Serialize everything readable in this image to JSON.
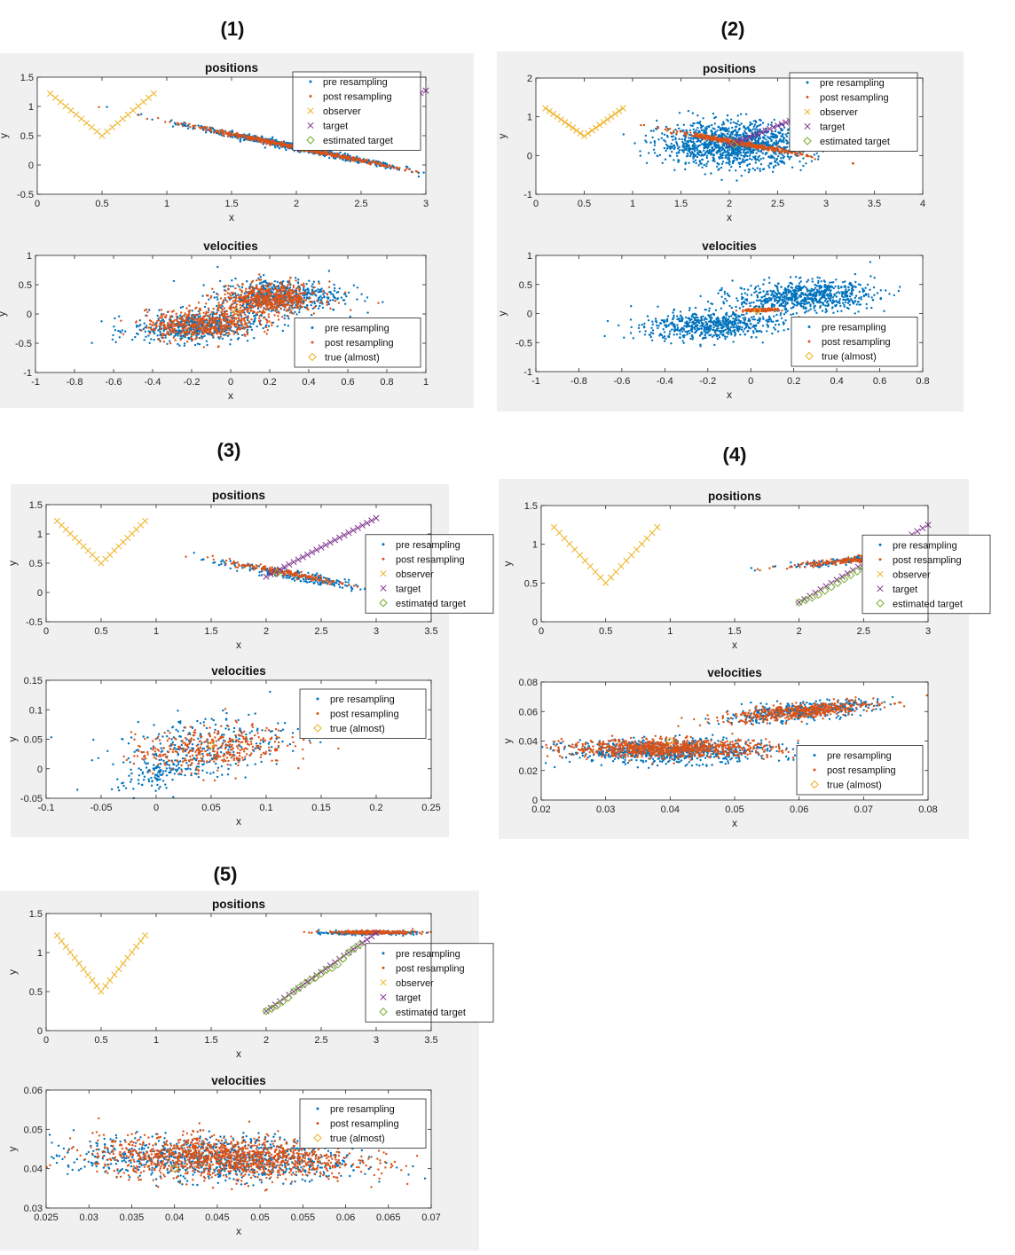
{
  "colors": {
    "pre": "#0072BD",
    "post": "#D95319",
    "observer": "#EDB120",
    "target": "#7E2F8E",
    "estimated": "#77AC30",
    "true_marker": "#EDB120",
    "panel_bg": "#F0F0F0"
  },
  "legend_labels": {
    "pre": "pre resampling",
    "post": "post resampling",
    "observer": "observer",
    "target": "target",
    "estimated": "estimated target",
    "true_almost": "true (almost)"
  },
  "axis_labels": {
    "x": "x",
    "y": "y"
  },
  "figures": [
    {
      "id": "1",
      "label": "(1)",
      "positions": {
        "title": "positions",
        "xlim": [
          0,
          3
        ],
        "ylim": [
          -0.5,
          1.5
        ],
        "xticks": [
          0,
          0.5,
          1,
          1.5,
          2,
          2.5,
          3
        ],
        "xtick_labels": [
          "0",
          "0.5",
          "1",
          "1.5",
          "2",
          "2.5",
          "3"
        ],
        "yticks": [
          -0.5,
          0,
          0.5,
          1,
          1.5
        ],
        "ytick_labels": [
          "-0.5",
          "0",
          "0.5",
          "1",
          "1.5"
        ],
        "legend": "top-right",
        "observer": {
          "xmin": 0.1,
          "xmax": 0.9,
          "n": 21,
          "ymin": 0.5,
          "yend": 1.22
        },
        "target": {
          "x0": 2.0,
          "y0": 0.27,
          "x1": 3.0,
          "y1": 1.27,
          "n": 25
        },
        "estimated": [
          [
            2.05,
            0.29
          ]
        ],
        "clouds": [
          {
            "set": "pre",
            "n": 700,
            "cx": 2.0,
            "cy": 0.3,
            "sx": 0.42,
            "sy": 0.028,
            "slope": -0.45
          },
          {
            "set": "post",
            "n": 520,
            "cx": 1.98,
            "cy": 0.31,
            "sx": 0.4,
            "sy": 0.018,
            "slope": -0.45
          }
        ]
      },
      "velocities": {
        "title": "velocities",
        "xlim": [
          -1,
          1
        ],
        "ylim": [
          -1,
          1
        ],
        "xticks": [
          -1,
          -0.8,
          -0.6,
          -0.4,
          -0.2,
          0,
          0.2,
          0.4,
          0.6,
          0.8,
          1
        ],
        "xtick_labels": [
          "-1",
          "-0.8",
          "-0.6",
          "-0.4",
          "-0.2",
          "0",
          "0.2",
          "0.4",
          "0.6",
          "0.8",
          "1"
        ],
        "yticks": [
          -1,
          -0.5,
          0,
          0.5,
          1
        ],
        "ytick_labels": [
          "-1",
          "-0.5",
          "0",
          "0.5",
          "1"
        ],
        "legend": "bottom-right",
        "true_point": [
          0.03,
          0.05
        ],
        "clouds": [
          {
            "set": "pre",
            "n": 520,
            "cx": -0.18,
            "cy": -0.22,
            "sx": 0.16,
            "sy": 0.13,
            "slope": 0.15
          },
          {
            "set": "pre",
            "n": 520,
            "cx": 0.25,
            "cy": 0.3,
            "sx": 0.16,
            "sy": 0.15,
            "slope": 0.1
          },
          {
            "set": "post",
            "n": 500,
            "cx": -0.15,
            "cy": -0.17,
            "sx": 0.14,
            "sy": 0.13,
            "slope": 0.15
          },
          {
            "set": "post",
            "n": 620,
            "cx": 0.2,
            "cy": 0.25,
            "sx": 0.13,
            "sy": 0.13,
            "slope": 0.1
          }
        ]
      }
    },
    {
      "id": "2",
      "label": "(2)",
      "positions": {
        "title": "positions",
        "xlim": [
          0,
          4
        ],
        "ylim": [
          -1,
          2
        ],
        "xticks": [
          0,
          0.5,
          1,
          1.5,
          2,
          2.5,
          3,
          3.5,
          4
        ],
        "xtick_labels": [
          "0",
          "0.5",
          "1",
          "1.5",
          "2",
          "2.5",
          "3",
          "3.5",
          "4"
        ],
        "yticks": [
          -1,
          0,
          1,
          2
        ],
        "ytick_labels": [
          "-1",
          "0",
          "1",
          "2"
        ],
        "legend": "top-right",
        "observer": {
          "xmin": 0.1,
          "xmax": 0.9,
          "n": 21,
          "ymin": 0.5,
          "yend": 1.22
        },
        "target": {
          "x0": 2.0,
          "y0": 0.27,
          "x1": 3.0,
          "y1": 1.27,
          "n": 25
        },
        "estimated": [
          [
            2.05,
            0.28
          ]
        ],
        "clouds": [
          {
            "set": "pre",
            "n": 1300,
            "cx": 2.05,
            "cy": 0.3,
            "sx": 0.38,
            "sy": 0.28,
            "slope": 0.0
          },
          {
            "set": "post",
            "n": 420,
            "cx": 2.1,
            "cy": 0.32,
            "sx": 0.33,
            "sy": 0.03,
            "slope": -0.45
          }
        ]
      },
      "velocities": {
        "title": "velocities",
        "xlim": [
          -1,
          0.8
        ],
        "ylim": [
          -1,
          1
        ],
        "xticks": [
          -1,
          -0.8,
          -0.6,
          -0.4,
          -0.2,
          0,
          0.2,
          0.4,
          0.6,
          0.8
        ],
        "xtick_labels": [
          "-1",
          "-0.8",
          "-0.6",
          "-0.4",
          "-0.2",
          "0",
          "0.2",
          "0.4",
          "0.6",
          "0.8"
        ],
        "yticks": [
          -1,
          -0.5,
          0,
          0.5,
          1
        ],
        "ytick_labels": [
          "-1",
          "-0.5",
          "0",
          "0.5",
          "1"
        ],
        "legend": "bottom-right",
        "true_point": [
          0.03,
          0.05
        ],
        "clouds": [
          {
            "set": "pre",
            "n": 620,
            "cx": -0.18,
            "cy": -0.2,
            "sx": 0.16,
            "sy": 0.12,
            "slope": 0.15
          },
          {
            "set": "pre",
            "n": 700,
            "cx": 0.25,
            "cy": 0.3,
            "sx": 0.16,
            "sy": 0.13,
            "slope": 0.1
          },
          {
            "set": "post",
            "n": 200,
            "cx": 0.05,
            "cy": 0.06,
            "sx": 0.04,
            "sy": 0.012,
            "slope": 0.1
          }
        ]
      }
    },
    {
      "id": "3",
      "label": "(3)",
      "positions": {
        "title": "positions",
        "xlim": [
          0,
          3.5
        ],
        "ylim": [
          -0.5,
          1.5
        ],
        "xticks": [
          0,
          0.5,
          1,
          1.5,
          2,
          2.5,
          3,
          3.5
        ],
        "xtick_labels": [
          "0",
          "0.5",
          "1",
          "1.5",
          "2",
          "2.5",
          "3",
          "3.5"
        ],
        "yticks": [
          -0.5,
          0,
          0.5,
          1,
          1.5
        ],
        "ytick_labels": [
          "-0.5",
          "0",
          "0.5",
          "1",
          "1.5"
        ],
        "legend": "right",
        "observer": {
          "xmin": 0.1,
          "xmax": 0.9,
          "n": 21,
          "ymin": 0.5,
          "yend": 1.22
        },
        "target": {
          "x0": 2.0,
          "y0": 0.27,
          "x1": 3.0,
          "y1": 1.27,
          "n": 25
        },
        "estimated": [
          [
            2.1,
            0.33
          ]
        ],
        "clouds": [
          {
            "set": "pre",
            "n": 220,
            "cx": 2.25,
            "cy": 0.28,
            "sx": 0.35,
            "sy": 0.05,
            "slope": -0.35
          },
          {
            "set": "post",
            "n": 180,
            "cx": 2.2,
            "cy": 0.33,
            "sx": 0.28,
            "sy": 0.03,
            "slope": -0.35
          }
        ]
      },
      "velocities": {
        "title": "velocities",
        "xlim": [
          -0.1,
          0.25
        ],
        "ylim": [
          -0.05,
          0.15
        ],
        "xticks": [
          -0.1,
          -0.05,
          0,
          0.05,
          0.1,
          0.15,
          0.2,
          0.25
        ],
        "xtick_labels": [
          "-0.1",
          "-0.05",
          "0",
          "0.05",
          "0.1",
          "0.15",
          "0.2",
          "0.25"
        ],
        "yticks": [
          -0.05,
          0,
          0.05,
          0.1,
          0.15
        ],
        "ytick_labels": [
          "-0.05",
          "0",
          "0.05",
          "0.1",
          "0.15"
        ],
        "legend": "top-right",
        "true_point": [
          0.05,
          0.04
        ],
        "clouds": [
          {
            "set": "pre",
            "n": 300,
            "cx": 0.04,
            "cy": 0.035,
            "sx": 0.04,
            "sy": 0.028,
            "slope": 0.3
          },
          {
            "set": "pre",
            "n": 80,
            "cx": 0.0,
            "cy": -0.01,
            "sx": 0.015,
            "sy": 0.01,
            "slope": 0.5
          },
          {
            "set": "post",
            "n": 380,
            "cx": 0.05,
            "cy": 0.035,
            "sx": 0.035,
            "sy": 0.018,
            "slope": 0.15
          }
        ]
      }
    },
    {
      "id": "4",
      "label": "(4)",
      "positions": {
        "title": "positions",
        "xlim": [
          0,
          3
        ],
        "ylim": [
          0,
          1.5
        ],
        "xticks": [
          0,
          0.5,
          1,
          1.5,
          2,
          2.5,
          3
        ],
        "xtick_labels": [
          "0",
          "0.5",
          "1",
          "1.5",
          "2",
          "2.5",
          "3"
        ],
        "yticks": [
          0,
          0.5,
          1,
          1.5
        ],
        "ytick_labels": [
          "0",
          "0.5",
          "1",
          "1.5"
        ],
        "legend": "right",
        "observer": {
          "xmin": 0.1,
          "xmax": 0.9,
          "n": 21,
          "ymin": 0.5,
          "yend": 1.22
        },
        "target": {
          "x0": 2.0,
          "y0": 0.25,
          "x1": 3.0,
          "y1": 1.25,
          "n": 25
        },
        "estimated": [
          [
            2.0,
            0.25
          ],
          [
            2.05,
            0.28
          ],
          [
            2.1,
            0.31
          ],
          [
            2.15,
            0.35
          ],
          [
            2.2,
            0.4
          ],
          [
            2.25,
            0.45
          ],
          [
            2.3,
            0.5
          ],
          [
            2.35,
            0.55
          ],
          [
            2.4,
            0.6
          ],
          [
            2.45,
            0.65
          ],
          [
            2.5,
            0.7
          ],
          [
            2.55,
            0.75
          ],
          [
            2.6,
            0.8
          ]
        ],
        "clouds": [
          {
            "set": "pre",
            "n": 260,
            "cx": 2.6,
            "cy": 0.82,
            "sx": 0.33,
            "sy": 0.02,
            "slope": 0.15
          },
          {
            "set": "post",
            "n": 340,
            "cx": 2.6,
            "cy": 0.82,
            "sx": 0.33,
            "sy": 0.018,
            "slope": 0.15
          }
        ]
      },
      "velocities": {
        "title": "velocities",
        "xlim": [
          0.02,
          0.08
        ],
        "ylim": [
          0,
          0.08
        ],
        "xticks": [
          0.02,
          0.03,
          0.04,
          0.05,
          0.06,
          0.07,
          0.08
        ],
        "xtick_labels": [
          "0.02",
          "0.03",
          "0.04",
          "0.05",
          "0.06",
          "0.07",
          "0.08"
        ],
        "yticks": [
          0,
          0.02,
          0.04,
          0.06,
          0.08
        ],
        "ytick_labels": [
          "0",
          "0.02",
          "0.04",
          "0.06",
          "0.08"
        ],
        "legend": "bottom-right",
        "true_point": [
          0.04,
          0.04
        ],
        "clouds": [
          {
            "set": "pre",
            "n": 700,
            "cx": 0.04,
            "cy": 0.033,
            "sx": 0.008,
            "sy": 0.004,
            "slope": 0.0
          },
          {
            "set": "pre",
            "n": 380,
            "cx": 0.06,
            "cy": 0.06,
            "sx": 0.006,
            "sy": 0.003,
            "slope": 0.4
          },
          {
            "set": "post",
            "n": 900,
            "cx": 0.04,
            "cy": 0.035,
            "sx": 0.008,
            "sy": 0.003,
            "slope": 0.0
          },
          {
            "set": "post",
            "n": 480,
            "cx": 0.06,
            "cy": 0.06,
            "sx": 0.006,
            "sy": 0.0025,
            "slope": 0.4
          }
        ]
      }
    },
    {
      "id": "5",
      "label": "(5)",
      "positions": {
        "title": "positions",
        "xlim": [
          0,
          3.5
        ],
        "ylim": [
          0,
          1.5
        ],
        "xticks": [
          0,
          0.5,
          1,
          1.5,
          2,
          2.5,
          3,
          3.5
        ],
        "xtick_labels": [
          "0",
          "0.5",
          "1",
          "1.5",
          "2",
          "2.5",
          "3",
          "3.5"
        ],
        "yticks": [
          0,
          0.5,
          1,
          1.5
        ],
        "ytick_labels": [
          "0",
          "0.5",
          "1",
          "1.5"
        ],
        "legend": "right",
        "observer": {
          "xmin": 0.1,
          "xmax": 0.9,
          "n": 21,
          "ymin": 0.5,
          "yend": 1.22
        },
        "target": {
          "x0": 2.0,
          "y0": 0.25,
          "x1": 3.0,
          "y1": 1.25,
          "n": 25
        },
        "estimated": [
          [
            2.0,
            0.25
          ],
          [
            2.05,
            0.28
          ],
          [
            2.1,
            0.32
          ],
          [
            2.15,
            0.37
          ],
          [
            2.2,
            0.42
          ],
          [
            2.25,
            0.5
          ],
          [
            2.3,
            0.55
          ],
          [
            2.35,
            0.6
          ],
          [
            2.4,
            0.65
          ],
          [
            2.45,
            0.68
          ],
          [
            2.5,
            0.73
          ],
          [
            2.55,
            0.78
          ],
          [
            2.6,
            0.8
          ],
          [
            2.65,
            0.85
          ],
          [
            2.7,
            0.92
          ],
          [
            2.75,
            1.0
          ],
          [
            2.8,
            1.05
          ],
          [
            2.85,
            1.1
          ]
        ],
        "clouds": [
          {
            "set": "pre",
            "n": 200,
            "cx": 2.95,
            "cy": 1.25,
            "sx": 0.2,
            "sy": 0.012,
            "slope": 0.0
          },
          {
            "set": "post",
            "n": 260,
            "cx": 2.95,
            "cy": 1.26,
            "sx": 0.2,
            "sy": 0.01,
            "slope": 0.0
          }
        ]
      },
      "velocities": {
        "title": "velocities",
        "xlim": [
          0.025,
          0.07
        ],
        "ylim": [
          0.03,
          0.06
        ],
        "xticks": [
          0.025,
          0.03,
          0.035,
          0.04,
          0.045,
          0.05,
          0.055,
          0.06,
          0.065,
          0.07
        ],
        "xtick_labels": [
          "0.025",
          "0.03",
          "0.035",
          "0.04",
          "0.045",
          "0.05",
          "0.055",
          "0.06",
          "0.065",
          "0.07"
        ],
        "yticks": [
          0.03,
          0.04,
          0.05,
          0.06
        ],
        "ytick_labels": [
          "0.03",
          "0.04",
          "0.05",
          "0.06"
        ],
        "legend": "top-right",
        "true_point": [
          0.04,
          0.04
        ],
        "clouds": [
          {
            "set": "pre",
            "n": 900,
            "cx": 0.045,
            "cy": 0.0425,
            "sx": 0.008,
            "sy": 0.0028,
            "slope": -0.05
          },
          {
            "set": "post",
            "n": 1300,
            "cx": 0.046,
            "cy": 0.0428,
            "sx": 0.0075,
            "sy": 0.0026,
            "slope": -0.05
          }
        ]
      }
    }
  ]
}
